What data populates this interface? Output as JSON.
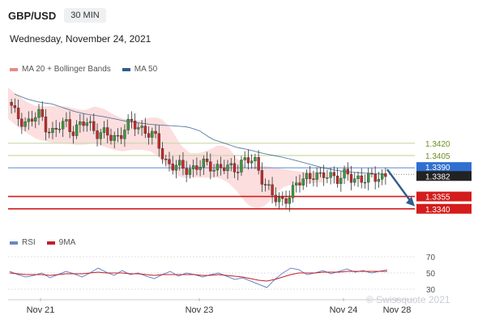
{
  "header": {
    "symbol": "GBP/USD",
    "timeframe": "30 MIN"
  },
  "date_label": "Wednesday, November 24, 2021",
  "watermark": "© Swissquote 2021",
  "chart_data": [
    {
      "type": "candlestick",
      "legend": [
        {
          "name": "MA 20 + Bollinger Bands",
          "color": "#e88a8a"
        },
        {
          "name": "MA 50",
          "color": "#2f5d8c"
        }
      ],
      "ylim": [
        1.3322,
        1.3488
      ],
      "x_ticks": [
        "Nov 21",
        "Nov 23",
        "Nov 24",
        "Nov 28"
      ],
      "close_path": [
        1.347,
        1.3455,
        1.345,
        1.3445,
        1.345,
        1.3455,
        1.344,
        1.3432,
        1.344,
        1.3445,
        1.3437,
        1.344,
        1.3445,
        1.344,
        1.3433,
        1.343,
        1.3425,
        1.343,
        1.344,
        1.3442,
        1.344,
        1.3438,
        1.343,
        1.342,
        1.34,
        1.3395,
        1.339,
        1.3388,
        1.339,
        1.3392,
        1.3392,
        1.3393,
        1.3392,
        1.339,
        1.3387,
        1.339,
        1.34,
        1.3398,
        1.3395,
        1.338,
        1.3365,
        1.335,
        1.3348,
        1.3358,
        1.3365,
        1.3372,
        1.338,
        1.3385,
        1.3376,
        1.338,
        1.3382,
        1.3378,
        1.338,
        1.3375,
        1.338,
        1.3376,
        1.3375,
        1.338,
        1.3382
      ],
      "bands_lower": [
        1.345,
        1.344,
        1.3432,
        1.3425,
        1.3422,
        1.342,
        1.342,
        1.3418,
        1.3418,
        1.342,
        1.3416,
        1.3412,
        1.341,
        1.3412,
        1.3412,
        1.341,
        1.34,
        1.3388,
        1.3378,
        1.3378,
        1.3378,
        1.3378,
        1.3378,
        1.3372,
        1.336,
        1.3345,
        1.334,
        1.3345,
        1.336,
        1.3368,
        1.337,
        1.337,
        1.3372,
        1.3372
      ],
      "bands_upper": [
        1.3488,
        1.3478,
        1.347,
        1.3465,
        1.3465,
        1.3465,
        1.3465,
        1.3462,
        1.346,
        1.3465,
        1.3462,
        1.3455,
        1.345,
        1.3448,
        1.3448,
        1.3452,
        1.345,
        1.3438,
        1.3418,
        1.3408,
        1.3408,
        1.3412,
        1.3418,
        1.3415,
        1.34,
        1.339,
        1.3392,
        1.3392,
        1.339,
        1.3388,
        1.3386,
        1.3385,
        1.3385,
        1.3386
      ],
      "ma50": [
        1.348,
        1.3474,
        1.347,
        1.3468,
        1.3463,
        1.3458,
        1.3455,
        1.3453,
        1.345,
        1.3447,
        1.3445,
        1.3443,
        1.3442,
        1.3441,
        1.344,
        1.3435,
        1.3425,
        1.342,
        1.3415,
        1.3412,
        1.3408,
        1.3405,
        1.3402,
        1.3398,
        1.3394,
        1.339,
        1.3387,
        1.3385,
        1.3384,
        1.3383,
        1.3382
      ],
      "levels": [
        {
          "value": 1.342,
          "label": "1.3420",
          "kind": "resistance"
        },
        {
          "value": 1.3405,
          "label": "1.3405",
          "kind": "resistance"
        },
        {
          "value": 1.339,
          "label": "1.3390",
          "kind": "pivot"
        },
        {
          "value": 1.3382,
          "label": "1.3382",
          "kind": "last"
        },
        {
          "value": 1.3355,
          "label": "1.3355",
          "kind": "support"
        },
        {
          "value": 1.334,
          "label": "1.3340",
          "kind": "support"
        }
      ],
      "forecast_arrow": {
        "from": 1.3388,
        "to": 1.3343
      }
    },
    {
      "type": "line",
      "legend": [
        {
          "name": "RSI",
          "color": "#6b86c8"
        },
        {
          "name": "9MA",
          "color": "#c0202a"
        }
      ],
      "ylim": [
        25,
        75
      ],
      "y_ticks": [
        "70",
        "50",
        "30"
      ],
      "rsi": [
        52,
        48,
        45,
        47,
        50,
        44,
        48,
        52,
        49,
        45,
        50,
        56,
        51,
        47,
        53,
        48,
        50,
        46,
        43,
        48,
        52,
        46,
        50,
        48,
        45,
        48,
        50,
        46,
        42,
        44,
        40,
        36,
        32,
        42,
        50,
        56,
        54,
        48,
        50,
        53,
        49,
        52,
        55,
        51,
        53,
        50,
        52,
        54
      ],
      "ma9": [
        50,
        49,
        48,
        48,
        48,
        47,
        48,
        49,
        49,
        49,
        50,
        51,
        50,
        50,
        50,
        49,
        49,
        48,
        47,
        48,
        48,
        48,
        48,
        48,
        47,
        47,
        48,
        47,
        46,
        45,
        43,
        41,
        40,
        42,
        45,
        48,
        50,
        50,
        50,
        51,
        51,
        51,
        52,
        52,
        52,
        52,
        52,
        52
      ]
    }
  ]
}
